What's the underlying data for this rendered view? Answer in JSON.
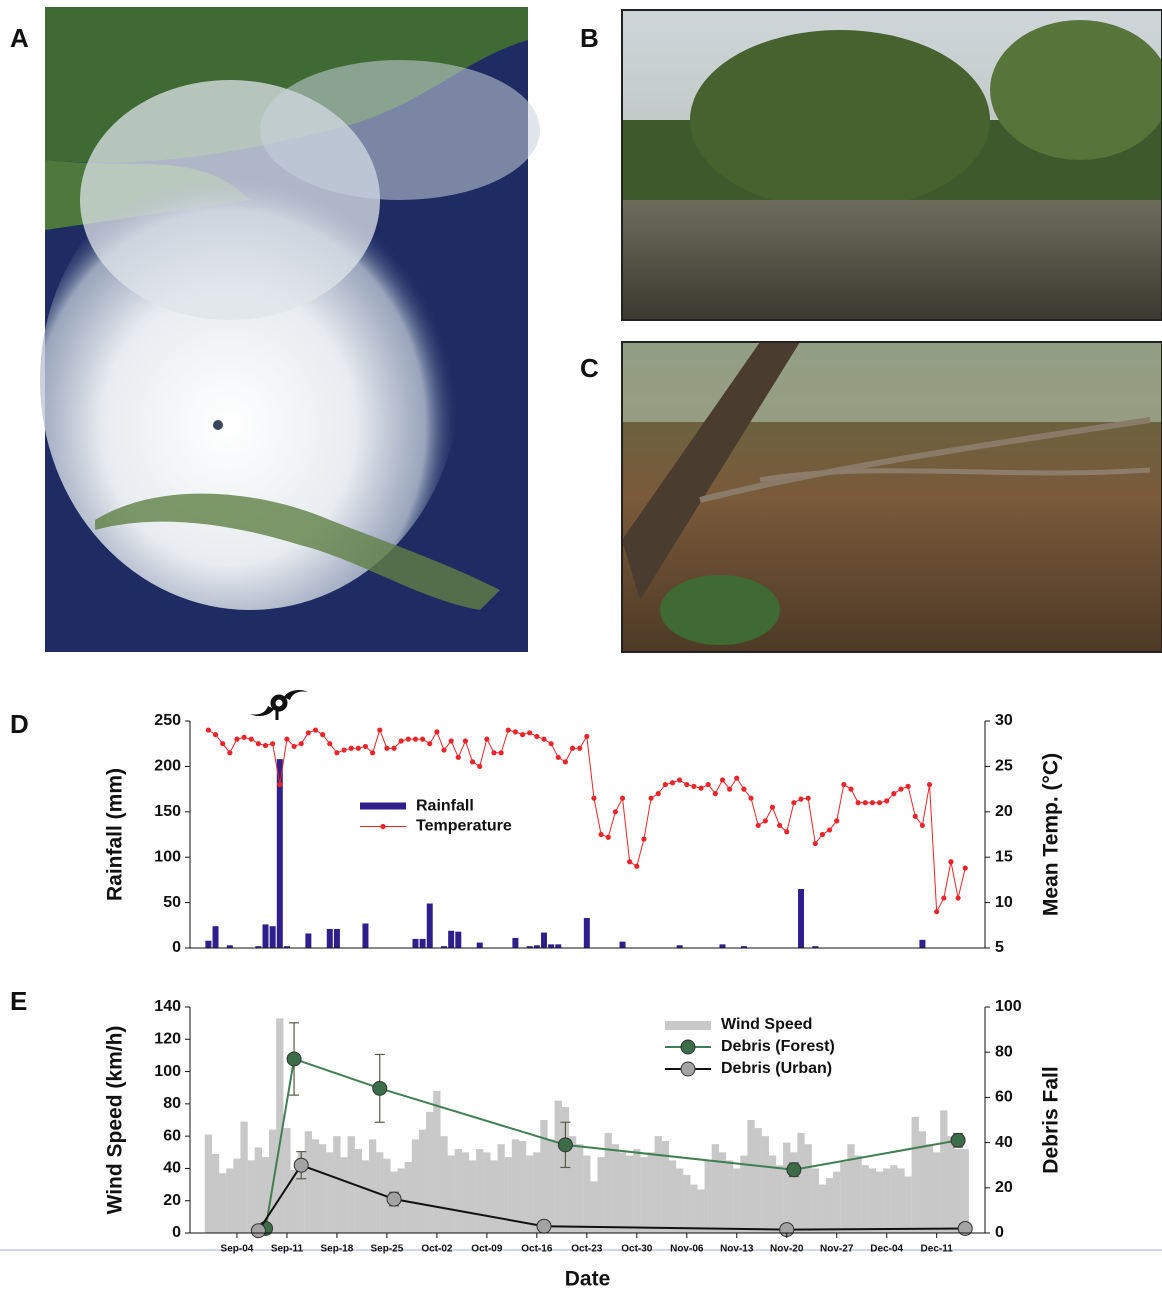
{
  "panel_labels": [
    "A",
    "B",
    "C",
    "D",
    "E"
  ],
  "chart_data": [
    {
      "type": "bar",
      "y_label": "Rainfall (mm)",
      "y2_label": "Mean Temp. (°C)",
      "x": [
        "Aug-31",
        "Sep-01",
        "Sep-02",
        "Sep-03",
        "Sep-04",
        "Sep-05",
        "Sep-06",
        "Sep-07",
        "Sep-08",
        "Sep-09",
        "Sep-10",
        "Sep-11",
        "Sep-12",
        "Sep-13",
        "Sep-14",
        "Sep-15",
        "Sep-16",
        "Sep-17",
        "Sep-18",
        "Sep-19",
        "Sep-20",
        "Sep-21",
        "Sep-22",
        "Sep-23",
        "Sep-24",
        "Sep-25",
        "Sep-26",
        "Sep-27",
        "Sep-28",
        "Sep-29",
        "Sep-30",
        "Oct-01",
        "Oct-02",
        "Oct-03",
        "Oct-04",
        "Oct-05",
        "Oct-06",
        "Oct-07",
        "Oct-08",
        "Oct-09",
        "Oct-10",
        "Oct-11",
        "Oct-12",
        "Oct-13",
        "Oct-14",
        "Oct-15",
        "Oct-16",
        "Oct-17",
        "Oct-18",
        "Oct-19",
        "Oct-20",
        "Oct-21",
        "Oct-22",
        "Oct-23",
        "Oct-24",
        "Oct-25",
        "Oct-26",
        "Oct-27",
        "Oct-28",
        "Oct-29",
        "Oct-30",
        "Oct-31",
        "Nov-01",
        "Nov-02",
        "Nov-03",
        "Nov-04",
        "Nov-05",
        "Nov-06",
        "Nov-07",
        "Nov-08",
        "Nov-09",
        "Nov-10",
        "Nov-11",
        "Nov-12",
        "Nov-13",
        "Nov-14",
        "Nov-15",
        "Nov-16",
        "Nov-17",
        "Nov-18",
        "Nov-19",
        "Nov-20",
        "Nov-21",
        "Nov-22",
        "Nov-23",
        "Nov-24",
        "Nov-25",
        "Nov-26",
        "Nov-27",
        "Nov-28",
        "Nov-29",
        "Nov-30",
        "Dec-01",
        "Dec-02",
        "Dec-03",
        "Dec-04",
        "Dec-05",
        "Dec-06",
        "Dec-07",
        "Dec-08",
        "Dec-09",
        "Dec-10",
        "Dec-11",
        "Dec-12",
        "Dec-13",
        "Dec-14",
        "Dec-15"
      ],
      "ylim": [
        0,
        250
      ],
      "yticks": [
        0,
        50,
        100,
        150,
        200,
        250
      ],
      "y2lim": [
        5,
        30
      ],
      "y2ticks": [
        5,
        10,
        15,
        20,
        25,
        30
      ],
      "grid": false,
      "legend": "center",
      "series": [
        {
          "name": "Rainfall",
          "type": "bar",
          "color": "#2f1f8c",
          "values": [
            8,
            24,
            0,
            3,
            0,
            0,
            0,
            2,
            26,
            24,
            208,
            2,
            0,
            0,
            16,
            0,
            0,
            21,
            21,
            0,
            0,
            0,
            27,
            0,
            0,
            0,
            0,
            0,
            0,
            10,
            10,
            49,
            0,
            2,
            19,
            18,
            0,
            0,
            6,
            0,
            0,
            0,
            0,
            11,
            0,
            2,
            3,
            17,
            4,
            4,
            0,
            0,
            0,
            33,
            0,
            0,
            0,
            0,
            7,
            0,
            0,
            0,
            0,
            0,
            0,
            0,
            3,
            0,
            0,
            0,
            0,
            0,
            4,
            0,
            0,
            2,
            0,
            0,
            0,
            0,
            0,
            0,
            0,
            65,
            0,
            2,
            0,
            0,
            0,
            0,
            0,
            0,
            0,
            0,
            0,
            0,
            0,
            0,
            0,
            0,
            9,
            0,
            0,
            0,
            0,
            0,
            0
          ]
        },
        {
          "name": "Temperature",
          "type": "line",
          "axis": "y2",
          "color": "#e8262a",
          "marker_color": "#e8262a",
          "values": [
            29,
            28.5,
            27.5,
            26.5,
            28,
            28.2,
            28,
            27.5,
            27.3,
            27.5,
            23,
            28,
            27.2,
            27.5,
            28.7,
            29,
            28.5,
            27.5,
            26.5,
            26.8,
            27,
            27,
            27.2,
            26.5,
            29,
            27,
            27,
            27.8,
            28,
            28,
            28,
            27.5,
            28.8,
            26.8,
            27.8,
            26,
            27.8,
            25.5,
            25,
            28,
            26.5,
            26.5,
            29,
            28.8,
            28.5,
            28.7,
            28.3,
            28,
            27.5,
            26,
            25.5,
            27,
            27,
            28.3,
            21.5,
            17.5,
            17.2,
            20,
            21.5,
            14.5,
            14,
            17,
            21.5,
            22,
            23,
            23.2,
            23.5,
            23,
            22.8,
            22.6,
            23,
            22,
            23.5,
            22.5,
            23.7,
            22.5,
            21.5,
            18.5,
            19,
            20.5,
            18.5,
            17.8,
            21,
            21.4,
            21.5,
            16.5,
            17.5,
            18,
            19,
            23,
            22.5,
            21,
            21,
            21,
            21,
            21.2,
            22,
            22.5,
            22.8,
            19.5,
            18.5,
            23,
            9,
            10.5,
            14.5,
            10.5,
            13.8
          ]
        }
      ]
    },
    {
      "type": "bar",
      "y_label": "Wind Speed (km/h)",
      "y2_label": "Debris Fall",
      "x_label": "Date",
      "x": [
        "Aug-31",
        "Sep-01",
        "Sep-02",
        "Sep-03",
        "Sep-04",
        "Sep-05",
        "Sep-06",
        "Sep-07",
        "Sep-08",
        "Sep-09",
        "Sep-10",
        "Sep-11",
        "Sep-12",
        "Sep-13",
        "Sep-14",
        "Sep-15",
        "Sep-16",
        "Sep-17",
        "Sep-18",
        "Sep-19",
        "Sep-20",
        "Sep-21",
        "Sep-22",
        "Sep-23",
        "Sep-24",
        "Sep-25",
        "Sep-26",
        "Sep-27",
        "Sep-28",
        "Sep-29",
        "Sep-30",
        "Oct-01",
        "Oct-02",
        "Oct-03",
        "Oct-04",
        "Oct-05",
        "Oct-06",
        "Oct-07",
        "Oct-08",
        "Oct-09",
        "Oct-10",
        "Oct-11",
        "Oct-12",
        "Oct-13",
        "Oct-14",
        "Oct-15",
        "Oct-16",
        "Oct-17",
        "Oct-18",
        "Oct-19",
        "Oct-20",
        "Oct-21",
        "Oct-22",
        "Oct-23",
        "Oct-24",
        "Oct-25",
        "Oct-26",
        "Oct-27",
        "Oct-28",
        "Oct-29",
        "Oct-30",
        "Oct-31",
        "Nov-01",
        "Nov-02",
        "Nov-03",
        "Nov-04",
        "Nov-05",
        "Nov-06",
        "Nov-07",
        "Nov-08",
        "Nov-09",
        "Nov-10",
        "Nov-11",
        "Nov-12",
        "Nov-13",
        "Nov-14",
        "Nov-15",
        "Nov-16",
        "Nov-17",
        "Nov-18",
        "Nov-19",
        "Nov-20",
        "Nov-21",
        "Nov-22",
        "Nov-23",
        "Nov-24",
        "Nov-25",
        "Nov-26",
        "Nov-27",
        "Nov-28",
        "Nov-29",
        "Nov-30",
        "Dec-01",
        "Dec-02",
        "Dec-03",
        "Dec-04",
        "Dec-05",
        "Dec-06",
        "Dec-07",
        "Dec-08",
        "Dec-09",
        "Dec-10",
        "Dec-11",
        "Dec-12",
        "Dec-13",
        "Dec-14",
        "Dec-15"
      ],
      "xticks": [
        "Sep-04",
        "Sep-11",
        "Sep-18",
        "Sep-25",
        "Oct-02",
        "Oct-09",
        "Oct-16",
        "Oct-23",
        "Oct-30",
        "Nov-06",
        "Nov-13",
        "Nov-20",
        "Nov-27",
        "Dec-04",
        "Dec-11"
      ],
      "ylim": [
        0,
        140
      ],
      "yticks": [
        0,
        20,
        40,
        60,
        80,
        100,
        120,
        140
      ],
      "y2lim": [
        0,
        100
      ],
      "y2ticks": [
        0,
        20,
        40,
        60,
        80,
        100
      ],
      "grid": false,
      "legend": "upper right",
      "series": [
        {
          "name": "Wind Speed",
          "type": "bar",
          "color": "#c8c8c8",
          "values": [
            61,
            49,
            37,
            40,
            46,
            69,
            45,
            53,
            47,
            64,
            133,
            65,
            39,
            50,
            63,
            58,
            55,
            50,
            60,
            47,
            60,
            52,
            45,
            58,
            50,
            46,
            38,
            40,
            44,
            58,
            64,
            75,
            88,
            60,
            48,
            52,
            50,
            45,
            52,
            50,
            45,
            55,
            47,
            58,
            57,
            48,
            50,
            70,
            58,
            82,
            78,
            60,
            55,
            48,
            32,
            47,
            62,
            55,
            50,
            48,
            52,
            47,
            50,
            60,
            57,
            45,
            40,
            36,
            30,
            27,
            45,
            55,
            50,
            45,
            40,
            48,
            70,
            65,
            60,
            48,
            42,
            56,
            50,
            62,
            55,
            40,
            30,
            34,
            38,
            44,
            55,
            48,
            42,
            40,
            38,
            40,
            42,
            40,
            35,
            72,
            63,
            55,
            50,
            76,
            60,
            52,
            52
          ]
        },
        {
          "name": "Debris (Forest)",
          "type": "line",
          "axis": "y2",
          "color": "#3f7f52",
          "marker_color": "#3b6e48",
          "x": [
            "Sep-08",
            "Sep-12",
            "Sep-24",
            "Oct-20",
            "Nov-21",
            "Dec-14"
          ],
          "values": [
            2,
            77,
            64,
            39,
            28,
            41
          ],
          "errors": [
            0.5,
            16,
            15,
            10,
            3,
            3
          ]
        },
        {
          "name": "Debris (Urban)",
          "type": "line",
          "axis": "y2",
          "color": "#111111",
          "marker_color": "#a3a3a3",
          "x": [
            "Sep-07",
            "Sep-13",
            "Sep-26",
            "Oct-17",
            "Nov-20",
            "Dec-15"
          ],
          "values": [
            1,
            30,
            15,
            3,
            1.5,
            2
          ],
          "errors": [
            0.5,
            6,
            3,
            0.5,
            0.5,
            0.5
          ]
        }
      ]
    }
  ]
}
